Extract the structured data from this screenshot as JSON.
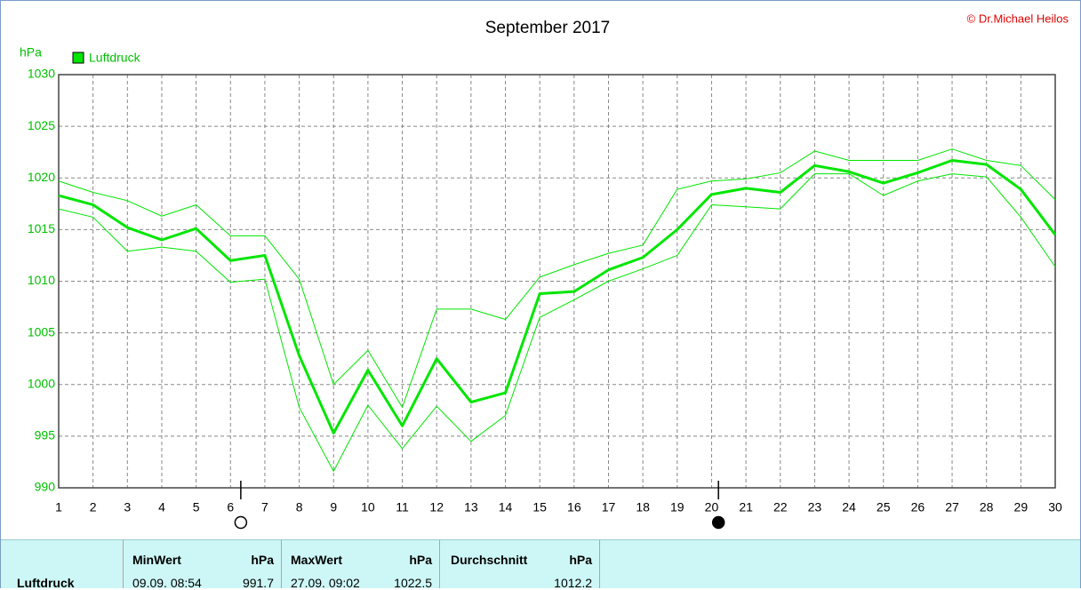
{
  "chart_data": {
    "type": "line",
    "title": "September 2017",
    "copyright": "© Dr.Michael Heilos",
    "y_label": "hPa",
    "x": [
      1,
      2,
      3,
      4,
      5,
      6,
      7,
      8,
      9,
      10,
      11,
      12,
      13,
      14,
      15,
      16,
      17,
      18,
      19,
      20,
      21,
      22,
      23,
      24,
      25,
      26,
      27,
      28,
      29,
      30
    ],
    "xlim": [
      1,
      30
    ],
    "xticks": [
      1,
      2,
      3,
      4,
      5,
      6,
      7,
      8,
      9,
      10,
      11,
      12,
      13,
      14,
      15,
      16,
      17,
      18,
      19,
      20,
      21,
      22,
      23,
      24,
      25,
      26,
      27,
      28,
      29,
      30
    ],
    "ylim": [
      990,
      1030
    ],
    "yticks": [
      990,
      995,
      1000,
      1005,
      1010,
      1015,
      1020,
      1025,
      1030
    ],
    "grid": true,
    "legend": "top-left",
    "series": [
      {
        "name": "Luftdruck",
        "color": "#00e600",
        "width": 3,
        "values": [
          1018.3,
          1017.4,
          1015.2,
          1014.0,
          1015.1,
          1012.0,
          1012.5,
          1002.8,
          995.3,
          1001.4,
          996.0,
          1002.5,
          998.3,
          999.2,
          1008.8,
          1009.0,
          1011.1,
          1012.3,
          1015.0,
          1018.4,
          1019.0,
          1018.6,
          1021.2,
          1020.6,
          1019.5,
          1020.5,
          1021.7,
          1021.3,
          1018.9,
          1014.5
        ]
      },
      {
        "color": "#00e600",
        "width": 1,
        "values": [
          1019.7,
          1018.6,
          1017.8,
          1016.3,
          1017.4,
          1014.4,
          1014.4,
          1010.2,
          1000.0,
          1003.3,
          997.8,
          1007.3,
          1007.3,
          1006.3,
          1010.4,
          1011.6,
          1012.7,
          1013.5,
          1018.9,
          1019.7,
          1019.9,
          1020.5,
          1022.6,
          1021.7,
          1021.7,
          1021.7,
          1022.8,
          1021.7,
          1021.2,
          1017.9
        ]
      },
      {
        "color": "#00e600",
        "width": 1,
        "values": [
          1017.0,
          1016.2,
          1012.9,
          1013.3,
          1012.9,
          1009.9,
          1010.2,
          997.8,
          991.6,
          998.0,
          993.8,
          997.9,
          994.5,
          997.0,
          1006.5,
          1008.2,
          1010.0,
          1011.2,
          1012.5,
          1017.4,
          1017.2,
          1017.0,
          1020.4,
          1020.4,
          1018.3,
          1019.7,
          1020.4,
          1020.1,
          1016.2,
          1011.4
        ]
      }
    ],
    "moon_phases": [
      {
        "x": 6.3,
        "filled": false
      },
      {
        "x": 20.2,
        "filled": true
      }
    ]
  },
  "stats_table": {
    "row_label": "Luftdruck",
    "columns": [
      {
        "name": "MinWert",
        "unit": "hPa",
        "time": "09.09. 08:54",
        "value": 991.7
      },
      {
        "name": "MaxWert",
        "unit": "hPa",
        "time": "27.09. 09:02",
        "value": 1022.5
      },
      {
        "name": "Durchschnitt",
        "unit": "hPa",
        "value": 1012.2
      }
    ]
  }
}
